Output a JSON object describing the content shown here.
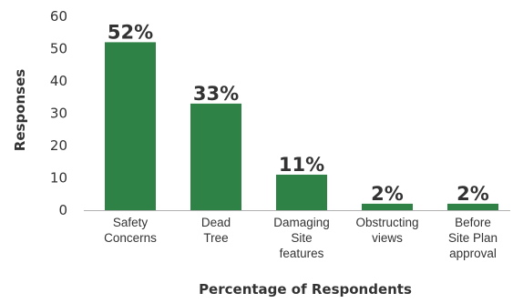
{
  "chart_data": {
    "type": "bar",
    "categories": [
      [
        "Safety",
        "Concerns"
      ],
      [
        "Dead",
        "Tree"
      ],
      [
        "Damaging",
        "Site",
        "features"
      ],
      [
        "Obstructing",
        "views"
      ],
      [
        "Before",
        "Site Plan",
        "approval"
      ]
    ],
    "values": [
      52,
      33,
      11,
      2,
      2
    ],
    "data_labels": [
      "52%",
      "33%",
      "11%",
      "2%",
      "2%"
    ],
    "xlabel": "Percentage of Respondents",
    "ylabel": "Responses",
    "ylim": [
      0,
      60
    ],
    "yticks": [
      0,
      10,
      20,
      30,
      40,
      50,
      60
    ],
    "bar_color": "#2e8246",
    "grid": false,
    "legend": "none"
  }
}
